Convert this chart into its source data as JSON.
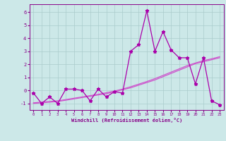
{
  "x": [
    0,
    1,
    2,
    3,
    4,
    5,
    6,
    7,
    8,
    9,
    10,
    11,
    12,
    13,
    14,
    15,
    16,
    17,
    18,
    19,
    20,
    21,
    22,
    23
  ],
  "y_line": [
    -0.2,
    -1.0,
    -0.5,
    -1.0,
    0.1,
    0.1,
    0.0,
    -0.8,
    0.1,
    -0.5,
    -0.1,
    -0.2,
    3.0,
    3.5,
    6.1,
    3.0,
    4.5,
    3.1,
    2.5,
    2.5,
    0.5,
    2.5,
    -0.8,
    -1.1
  ],
  "y_trend1": [
    -1.0,
    -0.95,
    -0.9,
    -0.85,
    -0.75,
    -0.65,
    -0.55,
    -0.45,
    -0.35,
    -0.25,
    -0.1,
    0.05,
    0.2,
    0.4,
    0.6,
    0.8,
    1.05,
    1.3,
    1.55,
    1.8,
    2.05,
    2.2,
    2.35,
    2.5
  ],
  "y_trend2": [
    -0.95,
    -0.9,
    -0.85,
    -0.8,
    -0.7,
    -0.6,
    -0.5,
    -0.4,
    -0.3,
    -0.18,
    -0.05,
    0.1,
    0.28,
    0.48,
    0.68,
    0.9,
    1.15,
    1.4,
    1.65,
    1.9,
    2.1,
    2.28,
    2.42,
    2.58
  ],
  "line_color": "#aa00aa",
  "trend_color": "#cc55cc",
  "bg_color": "#cce8e8",
  "grid_color": "#aacccc",
  "axis_color": "#880088",
  "xlabel": "Windchill (Refroidissement éolien,°C)",
  "xlim": [
    -0.5,
    23.5
  ],
  "ylim": [
    -1.5,
    6.6
  ],
  "yticks": [
    -1,
    0,
    1,
    2,
    3,
    4,
    5,
    6
  ],
  "xticks": [
    0,
    1,
    2,
    3,
    4,
    5,
    6,
    7,
    8,
    9,
    10,
    11,
    12,
    13,
    14,
    15,
    16,
    17,
    18,
    19,
    20,
    21,
    22,
    23
  ]
}
